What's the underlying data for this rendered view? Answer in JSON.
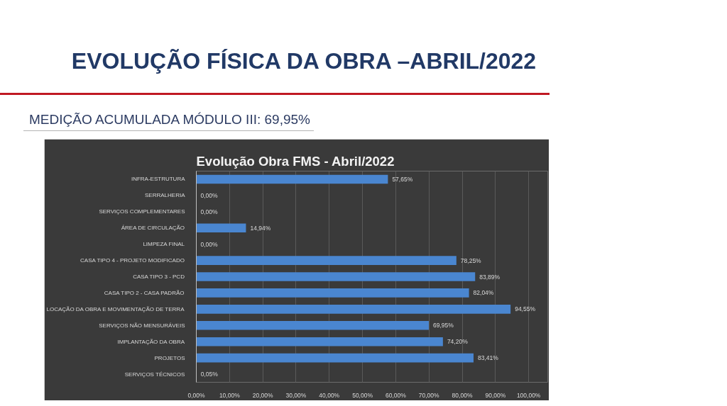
{
  "chart_data": {
    "type": "bar",
    "orientation": "horizontal",
    "title": "EVOLUÇÃO FÍSICA DA OBRA –ABRIL/2022",
    "subtitle": "MEDIÇÃO ACUMULADA MÓDULO III: 69,95%",
    "annotations": [
      "Evolução Obra FMS - Abril/2022"
    ],
    "categories": [
      "INFRA-ESTRUTURA",
      "SERRALHERIA",
      "SERVIÇOS COMPLEMENTARES",
      "ÁREA DE CIRCULAÇÃO",
      "LIMPEZA FINAL",
      "CASA TIPO 4 - PROJETO MODIFICADO",
      "CASA TIPO 3 - PCD",
      "CASA TIPO 2 - CASA PADRÃO",
      "LOCAÇÃO DA OBRA E MOVIMENTAÇÃO DE TERRA",
      "SERVIÇOS NÃO MENSURÁVEIS",
      "IMPLANTAÇÃO DA OBRA",
      "PROJETOS",
      "SERVIÇOS TÉCNICOS"
    ],
    "values": [
      57.65,
      0,
      0,
      14.94,
      0,
      78.25,
      83.89,
      82.04,
      94.55,
      69.95,
      74.2,
      83.41,
      0.05
    ],
    "value_labels": [
      "57,65%",
      "0,00%",
      "0,00%",
      "14,94%",
      "0,00%",
      "78,25%",
      "83,89%",
      "82,04%",
      "94,55%",
      "69,95%",
      "74,20%",
      "83,41%",
      "0,05%"
    ],
    "color": "#4a86d0",
    "xlim": [
      0,
      100
    ],
    "xticks": [
      {
        "value": 0,
        "label": "0,00%"
      },
      {
        "value": 10,
        "label": "10,00%"
      },
      {
        "value": 20,
        "label": "20,00%"
      },
      {
        "value": 30,
        "label": "30,00%"
      },
      {
        "value": 40,
        "label": "40,00%"
      },
      {
        "value": 50,
        "label": "50,00%"
      },
      {
        "value": 60,
        "label": "60,00%"
      },
      {
        "value": 70,
        "label": "70,00%"
      },
      {
        "value": 80,
        "label": "80,00%"
      },
      {
        "value": 90,
        "label": "90,00%"
      },
      {
        "value": 100,
        "label": "100,00%"
      }
    ],
    "grid": "x"
  }
}
